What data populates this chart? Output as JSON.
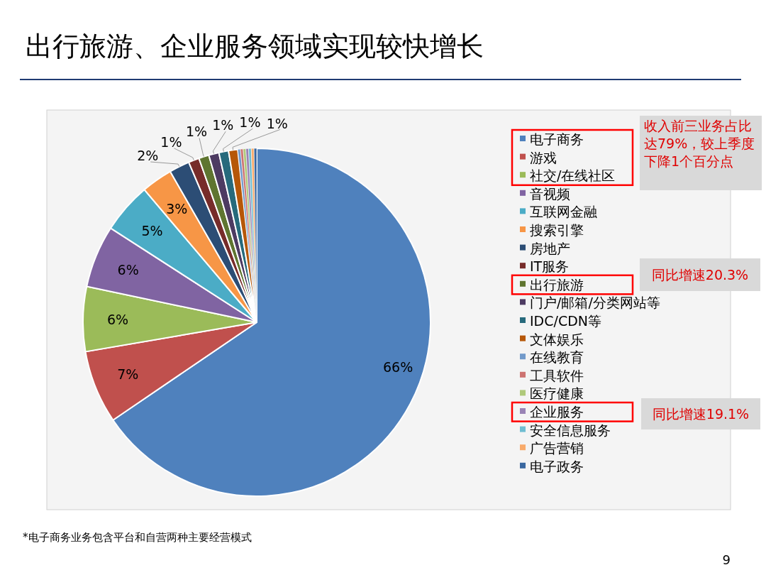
{
  "chart_data": {
    "type": "pie",
    "title": "出行旅游、企业服务领域实现较快增长",
    "categories": [
      "电子商务",
      "游戏",
      "社交/在线社区",
      "音视频",
      "互联网金融",
      "搜索引擎",
      "房地产",
      "IT服务",
      "出行旅游",
      "门户/邮箱/分类网站等",
      "IDC/CDN等",
      "文体娱乐",
      "在线教育",
      "工具软件",
      "医疗健康",
      "企业服务",
      "安全信息服务",
      "广告营销",
      "电子政务"
    ],
    "values": [
      65.5,
      6.8,
      6.0,
      5.8,
      4.7,
      2.9,
      1.9,
      1.0,
      0.95,
      0.95,
      0.9,
      0.85,
      0.25,
      0.25,
      0.25,
      0.25,
      0.25,
      0.25,
      0.25
    ],
    "value_labels": [
      "66%",
      "7%",
      "6%",
      "6%",
      "5%",
      "3%",
      "2%",
      "1%",
      "1%",
      "1%",
      "1%",
      "1%",
      null,
      null,
      null,
      null,
      null,
      null,
      null
    ],
    "colors": [
      "#4f81bd",
      "#c0504d",
      "#9bbb59",
      "#8064a2",
      "#4bacc6",
      "#f79646",
      "#2c4d75",
      "#772c2a",
      "#5f7530",
      "#4d3b62",
      "#276a7c",
      "#b65708",
      "#729aca",
      "#cd7371",
      "#afc97a",
      "#9983b5",
      "#6fbdd1",
      "#f9ab6b",
      "#3a68a0"
    ],
    "legend": "right",
    "annotations": [
      "收入前三业务占比达79%，较上季度下降1个百分点",
      "同比增速20.3%",
      "同比增速19.1%",
      "*电子商务业务包含平台和自营两种主要经营模式",
      "9"
    ]
  }
}
